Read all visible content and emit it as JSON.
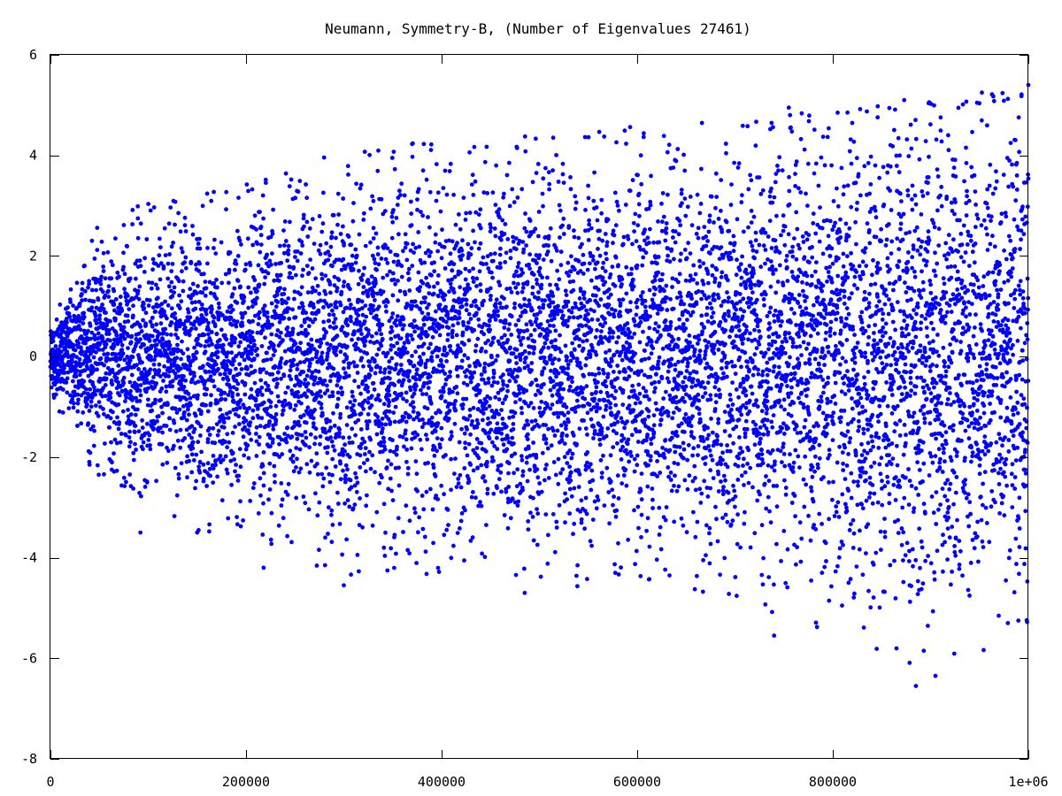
{
  "chart_data": {
    "type": "scatter",
    "title": "Neumann, Symmetry-B, (Number of Eigenvalues 27461)",
    "xlabel": "",
    "ylabel": "",
    "xlim": [
      0,
      1000000
    ],
    "ylim": [
      -8,
      6
    ],
    "x_ticks": [
      0,
      200000,
      400000,
      600000,
      800000,
      1000000
    ],
    "x_tick_labels": [
      "0",
      "200000",
      "400000",
      "600000",
      "800000",
      "1e+06"
    ],
    "y_ticks": [
      -8,
      -6,
      -4,
      -2,
      0,
      2,
      4,
      6
    ],
    "y_tick_labels": [
      "-8",
      "-6",
      "-4",
      "-2",
      "0",
      "2",
      "4",
      "6"
    ],
    "grid": false,
    "legend": "none",
    "marker_color": "#0000ff",
    "point_count": 27461,
    "series": [
      {
        "envelope": [
          {
            "x": 0,
            "y_min": -0.8,
            "y_max": 0.8
          },
          {
            "x": 50000,
            "y_min": -2.5,
            "y_max": 2.7
          },
          {
            "x": 100000,
            "y_min": -3.0,
            "y_max": 3.1
          },
          {
            "x": 150000,
            "y_min": -3.5,
            "y_max": 3.2
          },
          {
            "x": 200000,
            "y_min": -3.5,
            "y_max": 3.5
          },
          {
            "x": 300000,
            "y_min": -4.5,
            "y_max": 4.1
          },
          {
            "x": 400000,
            "y_min": -4.3,
            "y_max": 4.3
          },
          {
            "x": 500000,
            "y_min": -4.7,
            "y_max": 4.4
          },
          {
            "x": 600000,
            "y_min": -4.4,
            "y_max": 4.6
          },
          {
            "x": 700000,
            "y_min": -4.9,
            "y_max": 4.7
          },
          {
            "x": 800000,
            "y_min": -5.5,
            "y_max": 4.9
          },
          {
            "x": 900000,
            "y_min": -6.5,
            "y_max": 5.1
          },
          {
            "x": 1000000,
            "y_min": -5.3,
            "y_max": 5.4
          }
        ],
        "notable_points": [
          [
            1000000,
            5.4
          ],
          [
            873000,
            5.1
          ],
          [
            755000,
            4.95
          ],
          [
            805000,
            4.85
          ],
          [
            885000,
            -6.55
          ],
          [
            905000,
            -6.35
          ],
          [
            893000,
            -5.85
          ],
          [
            740000,
            -5.55
          ],
          [
            979000,
            -5.3
          ],
          [
            485000,
            -4.7
          ],
          [
            300000,
            -4.55
          ],
          [
            218000,
            -4.2
          ],
          [
            92000,
            -3.5
          ],
          [
            150000,
            -3.5
          ]
        ]
      }
    ]
  }
}
